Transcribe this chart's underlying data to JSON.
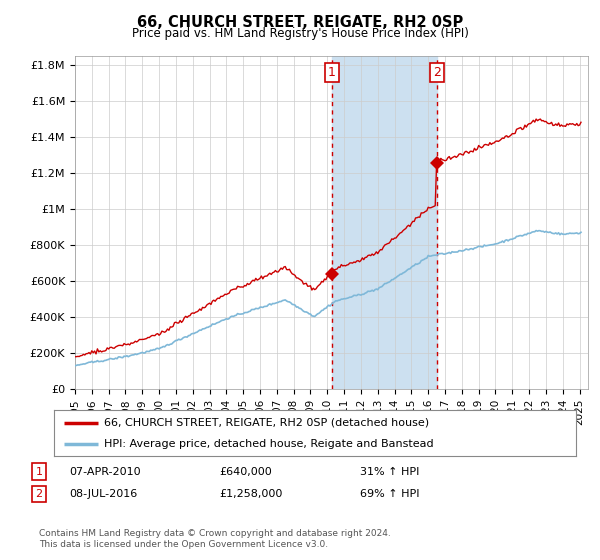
{
  "title": "66, CHURCH STREET, REIGATE, RH2 0SP",
  "subtitle": "Price paid vs. HM Land Registry's House Price Index (HPI)",
  "legend_line1": "66, CHURCH STREET, REIGATE, RH2 0SP (detached house)",
  "legend_line2": "HPI: Average price, detached house, Reigate and Banstead",
  "footnote": "Contains HM Land Registry data © Crown copyright and database right 2024.\nThis data is licensed under the Open Government Licence v3.0.",
  "annotation1": {
    "num": "1",
    "date": "07-APR-2010",
    "price": "£640,000",
    "hpi": "31% ↑ HPI"
  },
  "annotation2": {
    "num": "2",
    "date": "08-JUL-2016",
    "price": "£1,258,000",
    "hpi": "69% ↑ HPI"
  },
  "sale1_year": 2010.27,
  "sale1_price": 640000,
  "sale2_year": 2016.52,
  "sale2_price": 1258000,
  "hpi_color": "#7fb8d8",
  "sale_color": "#cc0000",
  "ylim": [
    0,
    1850000
  ],
  "yticks": [
    0,
    200000,
    400000,
    600000,
    800000,
    1000000,
    1200000,
    1400000,
    1600000,
    1800000
  ],
  "ytick_labels": [
    "£0",
    "£200K",
    "£400K",
    "£600K",
    "£800K",
    "£1M",
    "£1.2M",
    "£1.4M",
    "£1.6M",
    "£1.8M"
  ],
  "xlim_start": 1995.0,
  "xlim_end": 2025.5,
  "plot_bg": "#ffffff",
  "span_color": "#cce0f0"
}
